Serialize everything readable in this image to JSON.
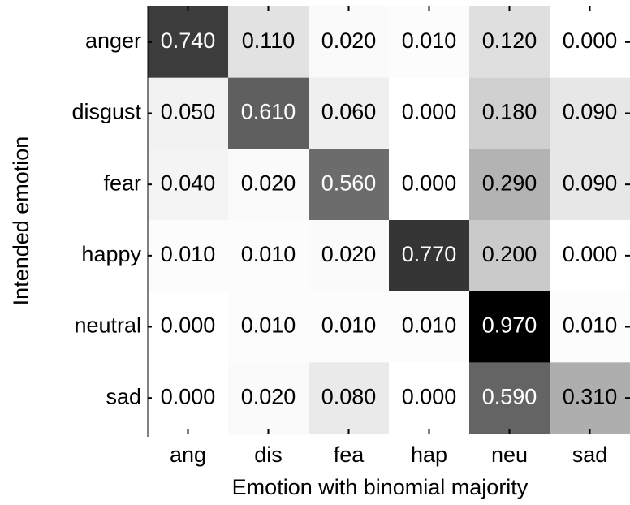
{
  "chart_data": {
    "type": "heatmap",
    "x_label": "Emotion with binomial majority",
    "y_label": "Intended emotion",
    "x_categories": [
      "ang",
      "dis",
      "fea",
      "hap",
      "neu",
      "sad"
    ],
    "y_categories": [
      "anger",
      "disgust",
      "fear",
      "happy",
      "neutral",
      "sad"
    ],
    "values": [
      [
        0.74,
        0.11,
        0.02,
        0.01,
        0.12,
        0.0
      ],
      [
        0.05,
        0.61,
        0.06,
        0.0,
        0.18,
        0.09
      ],
      [
        0.04,
        0.02,
        0.56,
        0.0,
        0.29,
        0.09
      ],
      [
        0.01,
        0.01,
        0.02,
        0.77,
        0.2,
        0.0
      ],
      [
        0.0,
        0.01,
        0.01,
        0.01,
        0.97,
        0.01
      ],
      [
        0.0,
        0.02,
        0.08,
        0.0,
        0.59,
        0.31
      ]
    ],
    "value_labels": [
      [
        "0.740",
        "0.110",
        "0.020",
        "0.010",
        "0.120",
        "0.000"
      ],
      [
        "0.050",
        "0.610",
        "0.060",
        "0.000",
        "0.180",
        "0.090"
      ],
      [
        "0.040",
        "0.020",
        "0.560",
        "0.000",
        "0.290",
        "0.090"
      ],
      [
        "0.010",
        "0.010",
        "0.020",
        "0.770",
        "0.200",
        "0.000"
      ],
      [
        "0.000",
        "0.010",
        "0.010",
        "0.010",
        "0.970",
        "0.010"
      ],
      [
        "0.000",
        "0.020",
        "0.080",
        "0.000",
        "0.590",
        "0.310"
      ]
    ],
    "colormap": [
      "#ffffff",
      "#000000"
    ]
  }
}
